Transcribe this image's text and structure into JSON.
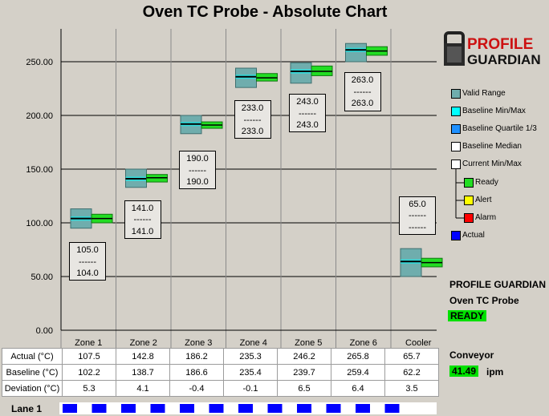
{
  "title": "Oven TC Probe - Absolute Chart",
  "colors": {
    "valid_range": "#6fadad",
    "baseline_minmax": "#00ffff",
    "baseline_quartile": "#1e90ff",
    "baseline_median": "#ffffff",
    "current_minmax": "#ffffff",
    "ready": "#22dd22",
    "alert": "#ffff00",
    "alarm": "#ff0000",
    "actual": "#0000ff",
    "green_badge": "#00e000"
  },
  "chart_data": {
    "type": "box",
    "ylim": [
      0,
      275
    ],
    "y_ticks": [
      "0.00",
      "50.00",
      "100.00",
      "150.00",
      "200.00",
      "250.00"
    ],
    "categories": [
      "Zone 1",
      "Zone 2",
      "Zone 3",
      "Zone 4",
      "Zone 5",
      "Zone 6",
      "Cooler"
    ],
    "valid_range": [
      [
        95,
        113
      ],
      [
        133,
        150
      ],
      [
        183,
        200
      ],
      [
        226,
        244
      ],
      [
        230,
        249
      ],
      [
        250,
        267
      ],
      [
        50,
        76
      ]
    ],
    "baseline_median": [
      104,
      141,
      192,
      236,
      241,
      261,
      64
    ],
    "current_range": [
      [
        100,
        108
      ],
      [
        138,
        145
      ],
      [
        188,
        194
      ],
      [
        232,
        239
      ],
      [
        237,
        246
      ],
      [
        256,
        264
      ],
      [
        59,
        67
      ]
    ],
    "current_median": [
      104,
      142,
      191,
      235,
      241,
      260,
      63
    ],
    "labels": [
      {
        "top": "105.0",
        "sep": "------",
        "bottom": "104.0",
        "y_top": 82,
        "y_bot": 46
      },
      {
        "top": "141.0",
        "sep": "------",
        "bottom": "141.0",
        "y_top": 121,
        "y_bot": 85
      },
      {
        "top": "190.0",
        "sep": "------",
        "bottom": "190.0",
        "y_top": 167,
        "y_bot": 131
      },
      {
        "top": "233.0",
        "sep": "------",
        "bottom": "233.0",
        "y_top": 214,
        "y_bot": 178
      },
      {
        "top": "243.0",
        "sep": "------",
        "bottom": "243.0",
        "y_top": 220,
        "y_bot": 184
      },
      {
        "top": "263.0",
        "sep": "------",
        "bottom": "263.0",
        "y_top": 240,
        "y_bot": 204
      },
      {
        "top": "65.0",
        "sep": "------",
        "bottom": "------",
        "y_top": 125,
        "y_bot": 89
      }
    ]
  },
  "table": {
    "rows": [
      {
        "label": "Actual (°C)",
        "values": [
          "107.5",
          "142.8",
          "186.2",
          "235.3",
          "246.2",
          "265.8",
          "65.7"
        ]
      },
      {
        "label": "Baseline (°C)",
        "values": [
          "102.2",
          "138.7",
          "186.6",
          "235.4",
          "239.7",
          "259.4",
          "62.2"
        ]
      },
      {
        "label": "Deviation (°C)",
        "values": [
          "5.3",
          "4.1",
          "-0.4",
          "-0.1",
          "6.5",
          "6.4",
          "3.5"
        ]
      }
    ]
  },
  "legend": {
    "valid_range": "Valid Range",
    "baseline_minmax": "Baseline Min/Max",
    "baseline_quartile": "Baseline Quartile 1/3",
    "baseline_median": "Baseline Median",
    "current_minmax": "Current Min/Max",
    "ready": "Ready",
    "alert": "Alert",
    "alarm": "Alarm",
    "actual": "Actual"
  },
  "logo": {
    "line1": "PROFILE",
    "line2": "GUARDIAN"
  },
  "info": {
    "app_name": "PROFILE GUARDIAN",
    "probe_name": "Oven TC Probe",
    "status": "READY",
    "conveyor_label": "Conveyor",
    "conveyor_value": "41.49",
    "conveyor_unit": "ipm"
  },
  "lane": {
    "label": "Lane 1",
    "indicator_count": 12
  }
}
